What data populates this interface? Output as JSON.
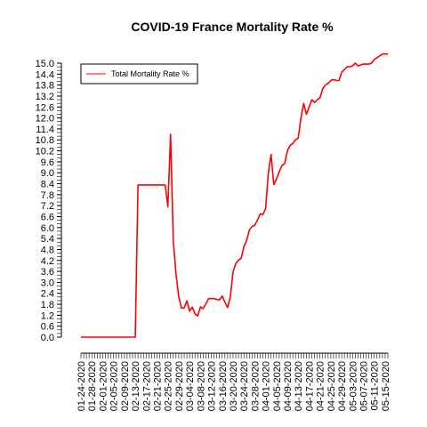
{
  "chart_data": {
    "type": "line",
    "title": "COVID-19 France Mortality Rate %",
    "xlabel": "",
    "ylabel": "",
    "ylim": [
      0.0,
      15.0
    ],
    "yticks": [
      "0.0",
      "0.6",
      "1.2",
      "1.8",
      "2.4",
      "3.0",
      "3.6",
      "4.2",
      "4.8",
      "5.4",
      "6.0",
      "6.6",
      "7.2",
      "7.8",
      "8.4",
      "9.0",
      "9.6",
      "10.2",
      "10.8",
      "11.4",
      "12.0",
      "12.6",
      "13.2",
      "13.8",
      "14.4",
      "15.0"
    ],
    "xtick_labels": [
      "01-24-2020",
      "01-28-2020",
      "02-01-2020",
      "02-05-2020",
      "02-09-2020",
      "02-13-2020",
      "02-17-2020",
      "02-21-2020",
      "02-25-2020",
      "02-29-2020",
      "03-04-2020",
      "03-08-2020",
      "03-12-2020",
      "03-16-2020",
      "03-20-2020",
      "03-24-2020",
      "03-28-2020",
      "04-01-2020",
      "04-05-2020",
      "04-09-2020",
      "04-13-2020",
      "04-17-2020",
      "04-21-2020",
      "04-25-2020",
      "04-29-2020",
      "05-03-2020",
      "05-07-2020",
      "05-11-2020",
      "05-15-2020"
    ],
    "x_start": "01-24-2020",
    "x_end": "05-16-2020",
    "legend": {
      "position": "top-left",
      "entries": [
        "Total Mortality Rate %"
      ]
    },
    "grid": false,
    "series": [
      {
        "name": "Total Mortality Rate %",
        "color": "#ff0000",
        "values": [
          0,
          0,
          0,
          0,
          0,
          0,
          0,
          0,
          0,
          0,
          0,
          0,
          0,
          0,
          0,
          0,
          0,
          0,
          0,
          0,
          0,
          8.33,
          8.33,
          8.33,
          8.33,
          8.33,
          8.33,
          8.33,
          8.33,
          8.33,
          8.33,
          8.33,
          7.14,
          11.11,
          5.26,
          3.45,
          2.21,
          1.6,
          1.6,
          1.99,
          1.43,
          1.64,
          1.27,
          1.16,
          1.66,
          1.56,
          1.82,
          2.11,
          2.11,
          2.11,
          2.07,
          2.04,
          2.25,
          1.91,
          1.62,
          2.2,
          3.57,
          4.03,
          4.22,
          4.32,
          4.96,
          5.29,
          5.86,
          6.06,
          6.13,
          6.41,
          6.76,
          6.71,
          7.04,
          9.0,
          10.0,
          8.35,
          8.67,
          9.05,
          9.4,
          9.5,
          10.2,
          10.5,
          10.6,
          10.8,
          10.9,
          12.0,
          12.8,
          12.2,
          12.6,
          13.0,
          12.85,
          13.0,
          13.1,
          13.6,
          13.8,
          13.9,
          14.05,
          14.1,
          14.05,
          14.05,
          14.5,
          14.65,
          14.8,
          14.8,
          14.85,
          15.0,
          14.85,
          14.9,
          14.95,
          14.95,
          14.95,
          15.0,
          15.2,
          15.3,
          15.4,
          15.5,
          15.5,
          15.5
        ]
      }
    ]
  }
}
